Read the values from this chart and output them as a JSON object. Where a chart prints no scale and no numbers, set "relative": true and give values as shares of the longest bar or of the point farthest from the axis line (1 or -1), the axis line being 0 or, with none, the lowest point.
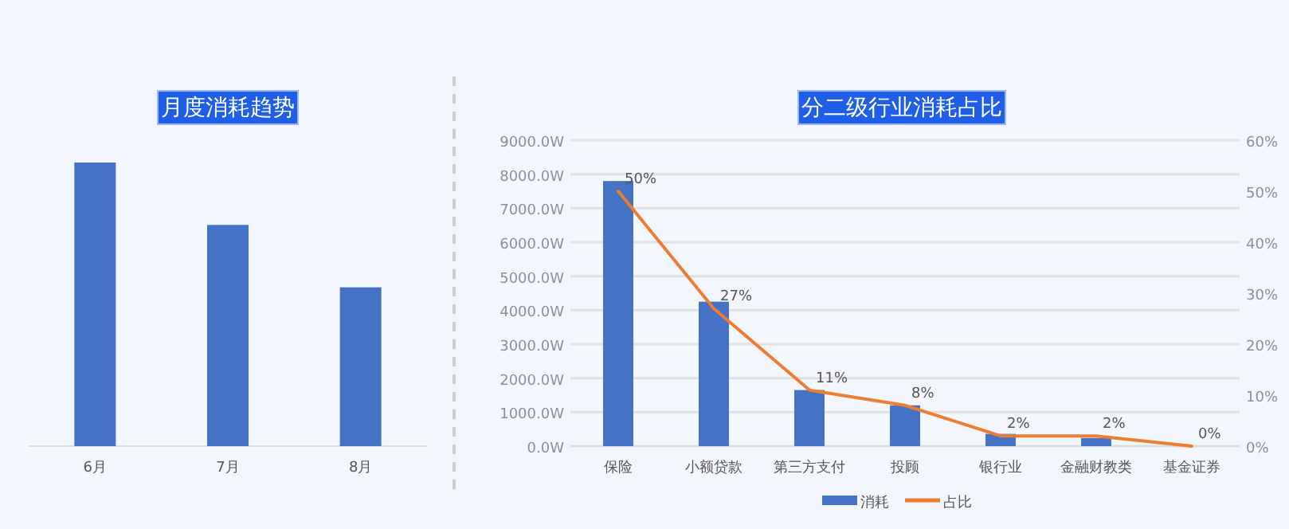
{
  "chart_data": [
    {
      "type": "bar",
      "title": "月度消耗趋势",
      "categories": [
        "6月",
        "7月",
        "8月"
      ],
      "values": [
        1,
        0.78,
        0.56
      ],
      "relative": true,
      "color": "#4472c4"
    },
    {
      "type": "bar",
      "title": "分二级行业消耗占比",
      "categories": [
        "保险",
        "小额贷款",
        "第三方支付",
        "投顾",
        "银行业",
        "金融财教类",
        "基金证券"
      ],
      "series": [
        {
          "name": "消耗",
          "color": "#4472c4",
          "values": [
            7800,
            4250,
            1650,
            1200,
            360,
            240,
            0
          ]
        },
        {
          "name": "占比",
          "type": "line",
          "axis": "y2",
          "color": "#ed7d31",
          "values": [
            50,
            27,
            11,
            8,
            2,
            2,
            0
          ],
          "value_labels": [
            "50%",
            "27%",
            "11%",
            "8%",
            "2%",
            "2%",
            "0%"
          ]
        }
      ],
      "ylim": [
        0,
        9000
      ],
      "yticks": [
        {
          "value": 0,
          "label": "0.0W"
        },
        {
          "value": 1000,
          "label": "1000.0W"
        },
        {
          "value": 2000,
          "label": "2000.0W"
        },
        {
          "value": 3000,
          "label": "3000.0W"
        },
        {
          "value": 4000,
          "label": "4000.0W"
        },
        {
          "value": 5000,
          "label": "5000.0W"
        },
        {
          "value": 6000,
          "label": "6000.0W"
        },
        {
          "value": 7000,
          "label": "7000.0W"
        },
        {
          "value": 8000,
          "label": "8000.0W"
        },
        {
          "value": 9000,
          "label": "9000.0W"
        }
      ],
      "y2lim": [
        0,
        60
      ],
      "y2ticks": [
        {
          "value": 0,
          "label": "0%"
        },
        {
          "value": 10,
          "label": "10%"
        },
        {
          "value": 20,
          "label": "20%"
        },
        {
          "value": 30,
          "label": "30%"
        },
        {
          "value": 40,
          "label": "40%"
        },
        {
          "value": 50,
          "label": "50%"
        },
        {
          "value": 60,
          "label": "60%"
        }
      ],
      "grid": "y",
      "legend": "bottom",
      "marker": "none"
    }
  ]
}
